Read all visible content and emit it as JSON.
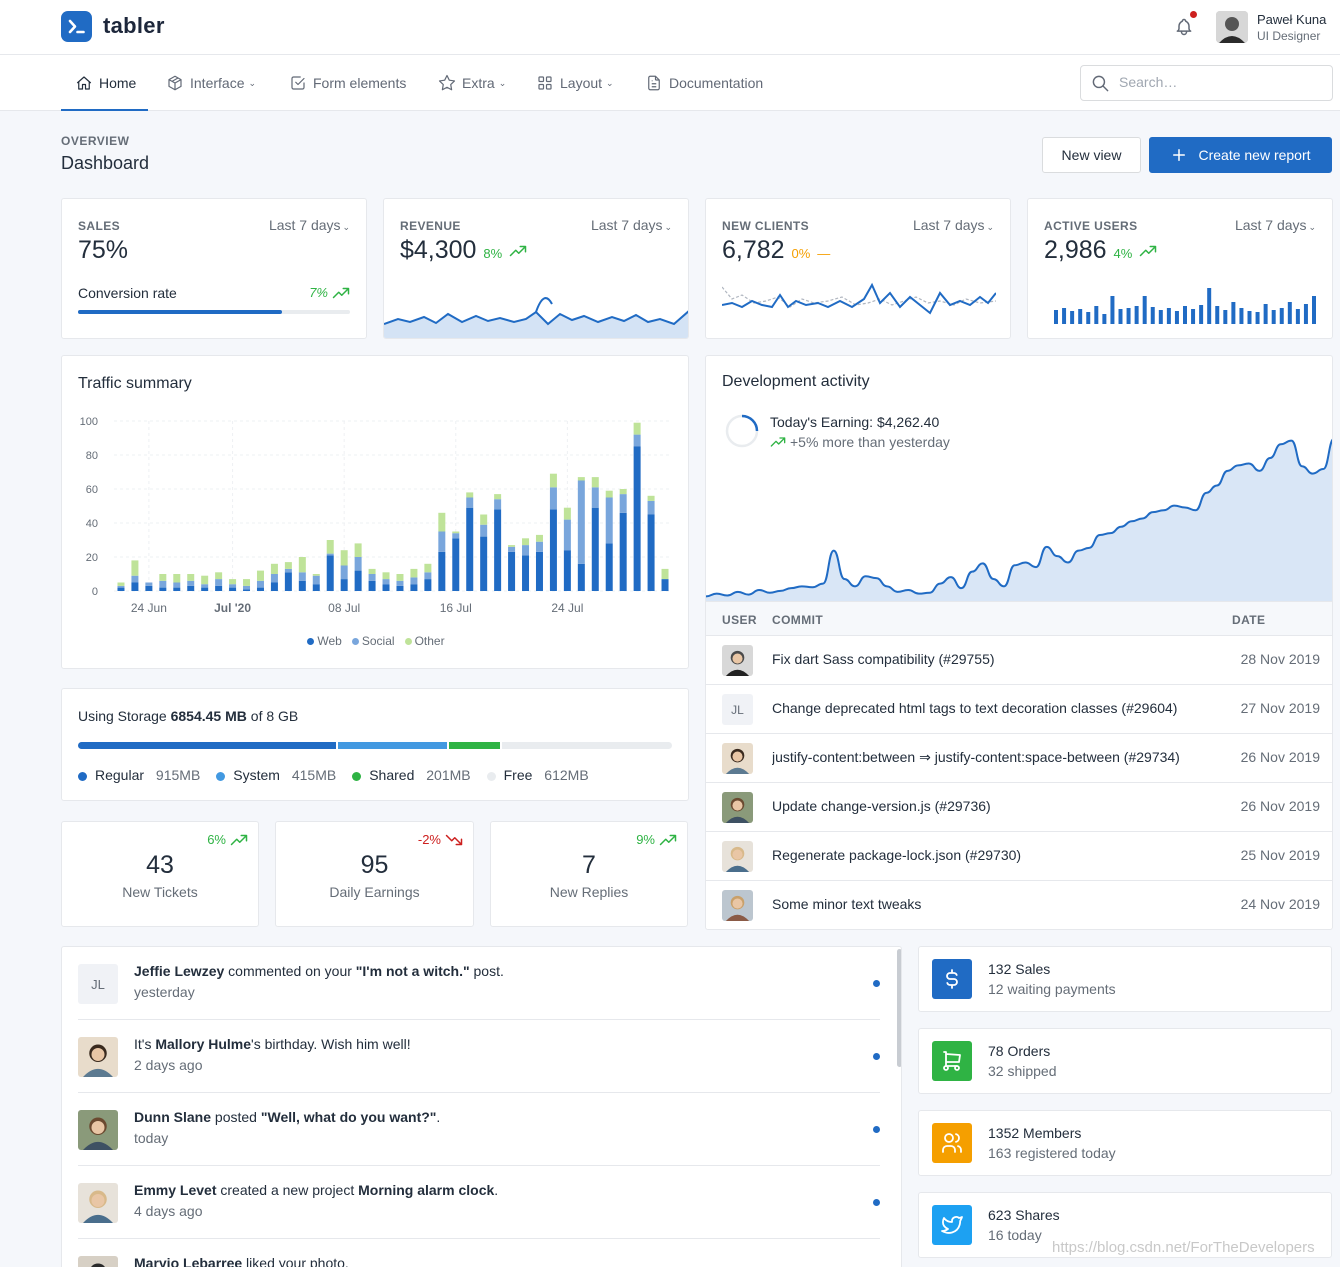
{
  "header": {
    "brand": "tabler",
    "user": {
      "name": "Paweł Kuna",
      "role": "UI Designer"
    }
  },
  "nav": {
    "items": [
      {
        "label": "Home",
        "icon": "home-icon",
        "active": true
      },
      {
        "label": "Interface",
        "icon": "package-icon",
        "dropdown": true
      },
      {
        "label": "Form elements",
        "icon": "checkbox-icon"
      },
      {
        "label": "Extra",
        "icon": "star-icon",
        "dropdown": true
      },
      {
        "label": "Layout",
        "icon": "layout-grid-icon",
        "dropdown": true
      },
      {
        "label": "Documentation",
        "icon": "file-icon"
      }
    ],
    "search_placeholder": "Search…"
  },
  "page": {
    "pretitle": "OVERVIEW",
    "title": "Dashboard",
    "btn_new_view": "New view",
    "btn_create_report": "Create new report"
  },
  "kpis": {
    "sales": {
      "label": "SALES",
      "range": "Last 7 days",
      "value": "75%",
      "sub_label": "Conversion rate",
      "trend": "7%",
      "progress": 0.75
    },
    "revenue": {
      "label": "REVENUE",
      "range": "Last 7 days",
      "value": "$4,300",
      "trend": "8%"
    },
    "clients": {
      "label": "NEW CLIENTS",
      "range": "Last 7 days",
      "value": "6,782",
      "trend": "0%"
    },
    "users": {
      "label": "ACTIVE USERS",
      "range": "Last 7 days",
      "value": "2,986",
      "trend": "4%"
    }
  },
  "traffic": {
    "title": "Traffic summary",
    "y_ticks": [
      "100",
      "80",
      "60",
      "40",
      "20",
      "0"
    ],
    "x_ticks": [
      "24 Jun",
      "Jul '20",
      "08 Jul",
      "16 Jul",
      "24 Jul"
    ],
    "legend": [
      "Web",
      "Social",
      "Other"
    ]
  },
  "chart_data": {
    "type": "bar",
    "stacked": true,
    "ylim": [
      0,
      100
    ],
    "series": [
      {
        "name": "Web",
        "color": "#206bc4",
        "values": [
          2,
          5,
          3,
          2,
          2,
          3,
          2,
          3,
          2,
          1,
          2,
          5,
          11,
          6,
          4,
          21,
          7,
          12,
          6,
          4,
          3,
          4,
          7,
          23,
          31,
          49,
          32,
          48,
          23,
          21,
          23,
          48,
          24,
          16,
          49,
          28,
          46,
          85,
          45,
          7
        ]
      },
      {
        "name": "Social",
        "color": "#79a6dc",
        "values": [
          1,
          4,
          2,
          4,
          3,
          3,
          2,
          4,
          2,
          2,
          4,
          5,
          2,
          5,
          5,
          1,
          8,
          8,
          4,
          3,
          3,
          4,
          4,
          12,
          3,
          6,
          7,
          6,
          3,
          6,
          6,
          13,
          18,
          49,
          12,
          27,
          11,
          7,
          8,
          0
        ]
      },
      {
        "name": "Other",
        "color": "#bfe399",
        "values": [
          2,
          9,
          0,
          4,
          5,
          4,
          5,
          4,
          3,
          4,
          6,
          6,
          4,
          9,
          1,
          8,
          9,
          8,
          3,
          4,
          4,
          5,
          5,
          11,
          1,
          3,
          6,
          3,
          1,
          4,
          4,
          8,
          7,
          2,
          6,
          4,
          3,
          7,
          3,
          6
        ]
      }
    ],
    "x_labels": [
      "24 Jun",
      "Jul '20",
      "08 Jul",
      "16 Jul",
      "24 Jul"
    ]
  },
  "dev": {
    "title": "Development activity",
    "earning": "Today's Earning: $4,262.40",
    "earning_sub": "+5% more than yesterday",
    "area": [
      5,
      8,
      6,
      10,
      7,
      12,
      9,
      11,
      14,
      16,
      15,
      19,
      55,
      24,
      16,
      27,
      25,
      16,
      10,
      12,
      8,
      9,
      19,
      26,
      14,
      32,
      41,
      24,
      16,
      39,
      42,
      37,
      59,
      49,
      42,
      55,
      58,
      72,
      74,
      81,
      87,
      90,
      97,
      99,
      104,
      102,
      99,
      118,
      126,
      142,
      148,
      150,
      142,
      156,
      171,
      175,
      147,
      139,
      144,
      177
    ]
  },
  "commits": {
    "headers": [
      "USER",
      "COMMIT",
      "DATE"
    ],
    "rows": [
      {
        "avatar": "avatar-man-1",
        "initials": "",
        "commit": "Fix dart Sass compatibility (#29755)",
        "date": "28 Nov 2019"
      },
      {
        "avatar": "",
        "initials": "JL",
        "commit": "Change deprecated html tags to text decoration classes (#29604)",
        "date": "27 Nov 2019"
      },
      {
        "avatar": "avatar-man-2",
        "initials": "",
        "commit": "justify-content:between ⇒ justify-content:space-between (#29734)",
        "date": "26 Nov 2019"
      },
      {
        "avatar": "avatar-man-3",
        "initials": "",
        "commit": "Update change-version.js (#29736)",
        "date": "26 Nov 2019"
      },
      {
        "avatar": "avatar-woman-1",
        "initials": "",
        "commit": "Regenerate package-lock.json (#29730)",
        "date": "25 Nov 2019"
      },
      {
        "avatar": "avatar-woman-2",
        "initials": "",
        "commit": "Some minor text tweaks",
        "date": "24 Nov 2019"
      }
    ]
  },
  "storage": {
    "prefix": "Using Storage ",
    "used": "6854.45 MB",
    "suffix": " of 8 GB",
    "segments": [
      {
        "name": "Regular",
        "value": "915MB",
        "fraction": 0.437,
        "color": "#206bc4"
      },
      {
        "name": "System",
        "value": "415MB",
        "fraction": 0.187,
        "color": "#4299e1"
      },
      {
        "name": "Shared",
        "value": "201MB",
        "fraction": 0.089,
        "color": "#2fb344"
      },
      {
        "name": "Free",
        "value": "612MB",
        "fraction": 0.287,
        "color": "#e9ecef"
      }
    ]
  },
  "small_stats": [
    {
      "value": "43",
      "label": "New Tickets",
      "trend": "6%",
      "dir": "up"
    },
    {
      "value": "95",
      "label": "Daily Earnings",
      "trend": "-2%",
      "dir": "down"
    },
    {
      "value": "7",
      "label": "New Replies",
      "trend": "9%",
      "dir": "up"
    }
  ],
  "activity": [
    {
      "initials": "JL",
      "name": "Jeffie Lewzey",
      "mid": " commented on your ",
      "obj": "\"I'm not a witch.\"",
      "end": " post.",
      "time": "yesterday"
    },
    {
      "initials": "",
      "pre": "It's ",
      "name": "Mallory Hulme",
      "mid": "'s birthday. Wish him well!",
      "obj": "",
      "end": "",
      "time": "2 days ago"
    },
    {
      "initials": "",
      "name": "Dunn Slane",
      "mid": " posted ",
      "obj": "\"Well, what do you want?\"",
      "end": ".",
      "time": "today"
    },
    {
      "initials": "",
      "name": "Emmy Levet",
      "mid": " created a new project ",
      "obj": "Morning alarm clock",
      "end": ".",
      "time": "4 days ago"
    },
    {
      "initials": "",
      "name": "Maryjo Lebarree",
      "mid": " liked your photo.",
      "obj": "",
      "end": "",
      "time": ""
    }
  ],
  "stats": [
    {
      "line1": "132 Sales",
      "line2": "12 waiting payments",
      "color": "#206bc4",
      "icon": "dollar-icon"
    },
    {
      "line1": "78 Orders",
      "line2": "32 shipped",
      "color": "#2fb344",
      "icon": "shopping-cart-icon"
    },
    {
      "line1": "1352 Members",
      "line2": "163 registered today",
      "color": "#f59f00",
      "icon": "users-icon"
    },
    {
      "line1": "623 Shares",
      "line2": "16 today",
      "color": "#1da1f2",
      "icon": "twitter-icon"
    }
  ],
  "watermark": "https://blog.csdn.net/ForTheDevelopers"
}
